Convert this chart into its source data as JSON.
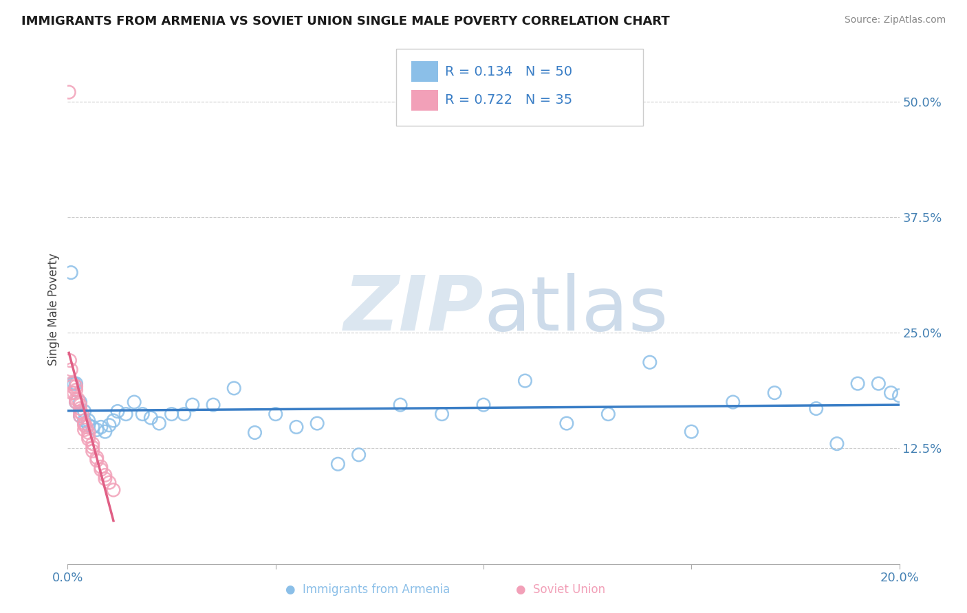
{
  "title": "IMMIGRANTS FROM ARMENIA VS SOVIET UNION SINGLE MALE POVERTY CORRELATION CHART",
  "source": "Source: ZipAtlas.com",
  "ylabel": "Single Male Poverty",
  "xlim": [
    0.0,
    0.2
  ],
  "ylim": [
    0.0,
    0.55
  ],
  "yticks_right": [
    0.0,
    0.125,
    0.25,
    0.375,
    0.5
  ],
  "yticklabels_right": [
    "",
    "12.5%",
    "25.0%",
    "37.5%",
    "50.0%"
  ],
  "legend_r1": "0.134",
  "legend_n1": "50",
  "legend_r2": "0.722",
  "legend_n2": "35",
  "armenia_color": "#8BBFE8",
  "soviet_color": "#F2A0B8",
  "armenia_line_color": "#3A7EC6",
  "soviet_line_color": "#E05F85",
  "background_color": "#FFFFFF",
  "armenia_scatter_x": [
    0.0008,
    0.001,
    0.0015,
    0.002,
    0.002,
    0.003,
    0.003,
    0.004,
    0.004,
    0.005,
    0.005,
    0.006,
    0.007,
    0.008,
    0.009,
    0.01,
    0.011,
    0.012,
    0.014,
    0.016,
    0.018,
    0.02,
    0.022,
    0.025,
    0.028,
    0.03,
    0.035,
    0.04,
    0.045,
    0.05,
    0.055,
    0.06,
    0.065,
    0.07,
    0.08,
    0.09,
    0.1,
    0.11,
    0.12,
    0.13,
    0.14,
    0.15,
    0.16,
    0.17,
    0.18,
    0.185,
    0.19,
    0.195,
    0.198,
    0.2
  ],
  "armenia_scatter_y": [
    0.315,
    0.195,
    0.195,
    0.195,
    0.175,
    0.16,
    0.175,
    0.155,
    0.165,
    0.15,
    0.155,
    0.148,
    0.145,
    0.148,
    0.143,
    0.15,
    0.155,
    0.165,
    0.162,
    0.175,
    0.162,
    0.158,
    0.152,
    0.162,
    0.162,
    0.172,
    0.172,
    0.19,
    0.142,
    0.162,
    0.148,
    0.152,
    0.108,
    0.118,
    0.172,
    0.162,
    0.172,
    0.198,
    0.152,
    0.162,
    0.218,
    0.143,
    0.175,
    0.185,
    0.168,
    0.13,
    0.195,
    0.195,
    0.185,
    0.182
  ],
  "soviet_scatter_x": [
    0.0003,
    0.0005,
    0.0008,
    0.001,
    0.001,
    0.001,
    0.0015,
    0.002,
    0.002,
    0.002,
    0.002,
    0.0025,
    0.003,
    0.003,
    0.003,
    0.003,
    0.0035,
    0.004,
    0.004,
    0.004,
    0.0045,
    0.005,
    0.005,
    0.005,
    0.006,
    0.006,
    0.006,
    0.007,
    0.007,
    0.008,
    0.008,
    0.009,
    0.009,
    0.01,
    0.011
  ],
  "soviet_scatter_y": [
    0.51,
    0.22,
    0.21,
    0.195,
    0.185,
    0.192,
    0.185,
    0.175,
    0.178,
    0.188,
    0.192,
    0.178,
    0.16,
    0.164,
    0.168,
    0.172,
    0.162,
    0.145,
    0.15,
    0.152,
    0.148,
    0.135,
    0.138,
    0.142,
    0.122,
    0.126,
    0.13,
    0.112,
    0.115,
    0.102,
    0.105,
    0.092,
    0.096,
    0.088,
    0.08
  ]
}
